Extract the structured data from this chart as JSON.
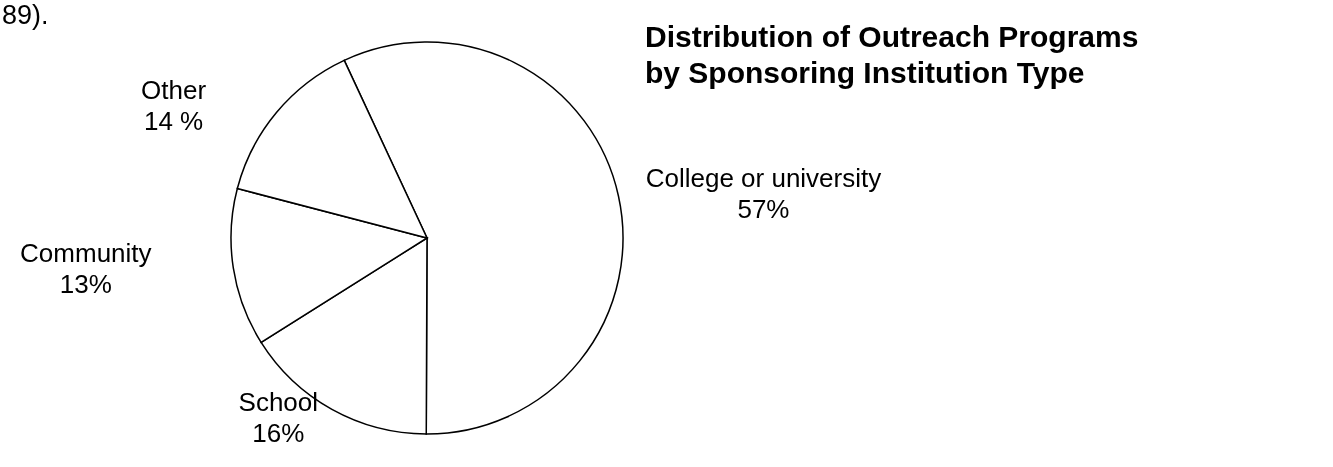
{
  "chart_data": {
    "type": "pie",
    "title": "Distribution of Outreach Programs by Sponsoring Institution Type",
    "categories": [
      "College or university",
      "School",
      "Community",
      "Other"
    ],
    "values": [
      57,
      16,
      13,
      14
    ],
    "value_labels": [
      "57%",
      "16%",
      "13%",
      "14 %"
    ],
    "colors": [
      "#ffffff",
      "#ffffff",
      "#ffffff",
      "#ffffff"
    ],
    "annotations": [
      "89)."
    ]
  }
}
